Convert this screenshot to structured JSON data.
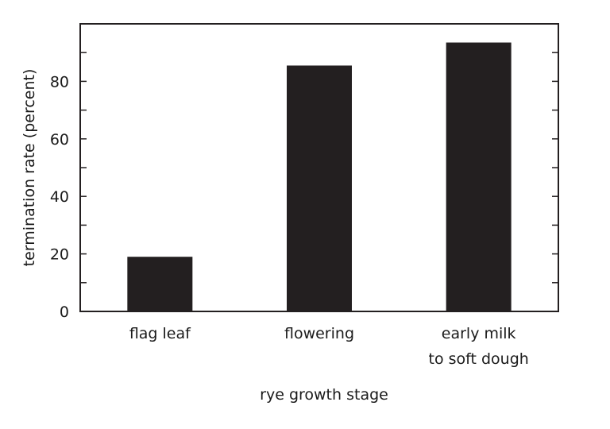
{
  "chart_data": {
    "type": "bar",
    "title": "",
    "xlabel": "rye growth stage",
    "ylabel": "termination rate (percent)",
    "categories": [
      [
        "flag leaf"
      ],
      [
        "flowering"
      ],
      [
        "early milk",
        "to soft dough"
      ]
    ],
    "values": [
      19,
      85.5,
      93.5
    ],
    "ylim": [
      0,
      100
    ],
    "y_major_ticks": [
      0,
      20,
      40,
      60,
      80
    ],
    "y_minor_step": 10,
    "grid": false,
    "bar_color": "#231f20",
    "axis_color": "#231f20"
  }
}
